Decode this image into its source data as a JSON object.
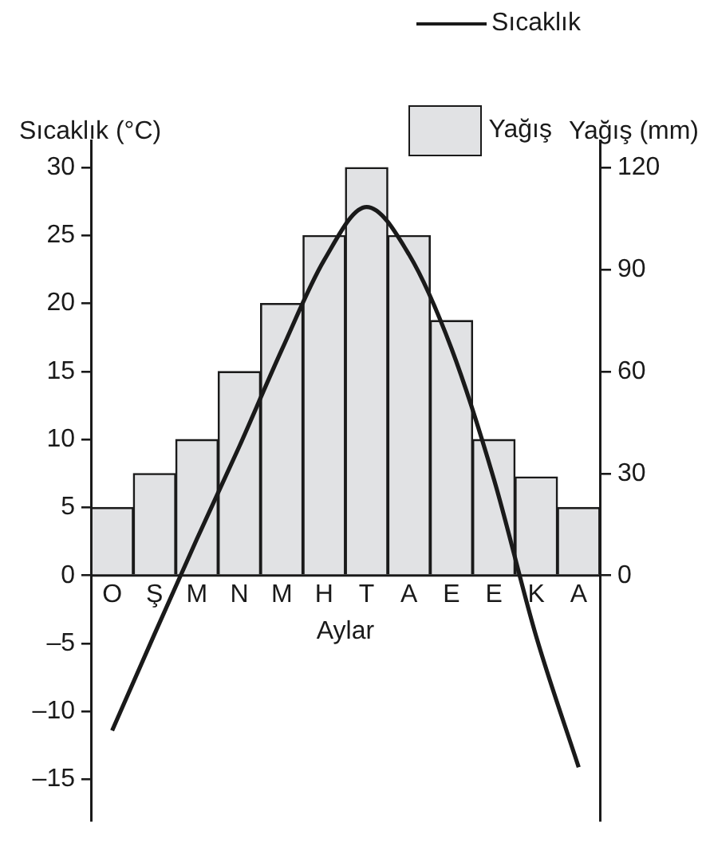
{
  "chart_data": {
    "type": "bar",
    "categories": [
      "O",
      "Ş",
      "M",
      "N",
      "M",
      "H",
      "T",
      "A",
      "E",
      "E",
      "K",
      "A"
    ],
    "xlabel": "Aylar",
    "ylabel": "Sıcaklık (°C)",
    "y2label": "Yağış (mm)",
    "legend": "top right",
    "marker": "none",
    "series": [
      {
        "name": "Sıcaklık",
        "type": "line",
        "color": "#1a1a1a",
        "values": [
          -11.4,
          -4.3,
          2.7,
          9.5,
          16.6,
          23.2,
          27.1,
          23.6,
          16.7,
          7.1,
          -4.5,
          -14.1
        ]
      },
      {
        "name": "Yağış",
        "axis": "y2",
        "color": "#e1e2e4",
        "values": [
          20,
          30,
          40,
          60,
          80,
          100,
          120,
          100,
          75,
          40,
          29,
          20
        ]
      }
    ],
    "ylim": [
      -18,
      32
    ],
    "yticks": [
      {
        "value": -15,
        "label": "–15"
      },
      {
        "value": -10,
        "label": "–10"
      },
      {
        "value": -5,
        "label": "–5"
      },
      0,
      5,
      10,
      15,
      20,
      25,
      30
    ],
    "y2lim": [
      -72,
      128
    ],
    "y2ticks": [
      0,
      30,
      60,
      90,
      120
    ]
  }
}
